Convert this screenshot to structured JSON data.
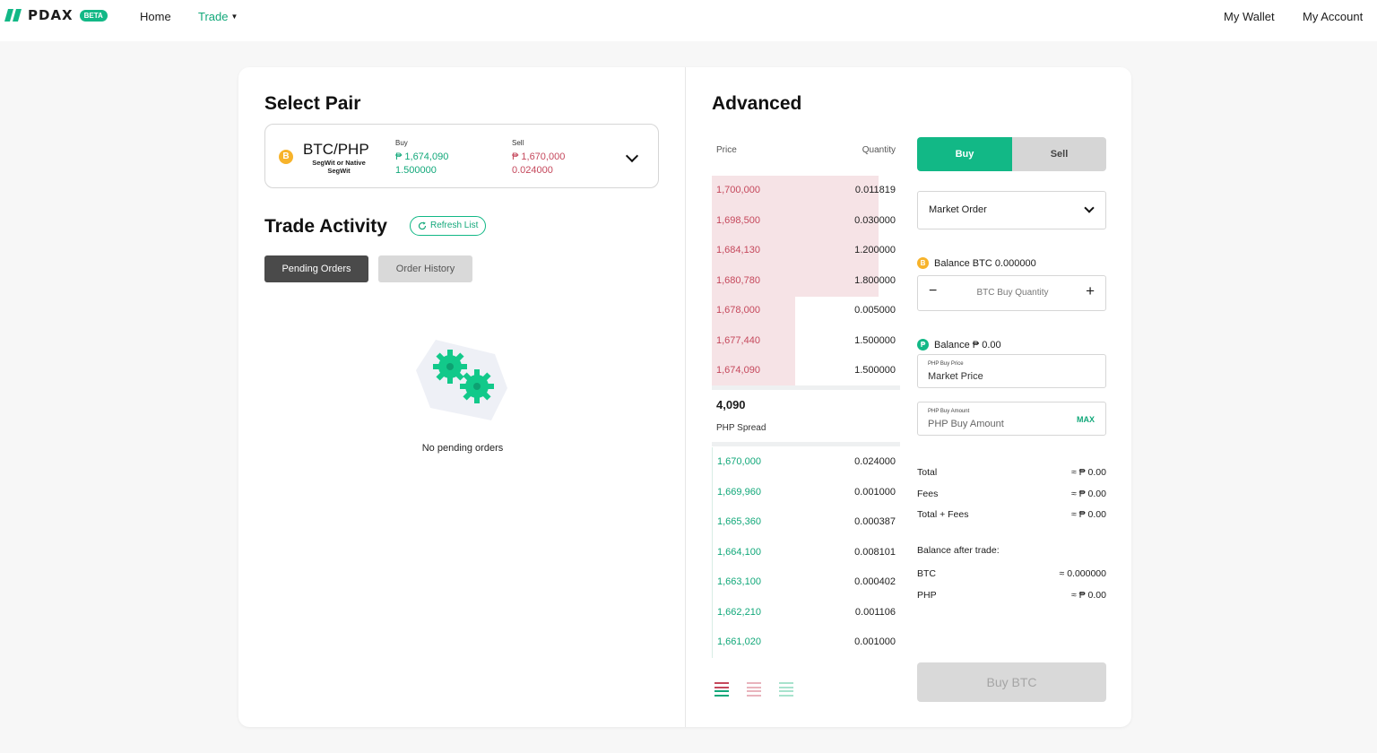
{
  "topbar": {
    "brand": "PDAX",
    "badge": "BETA",
    "nav": {
      "home": "Home",
      "trade": "Trade"
    },
    "right": {
      "wallet": "My Wallet",
      "account": "My Account"
    }
  },
  "select_pair": {
    "title": "Select Pair",
    "coin_glyph": "B",
    "pair": "BTC/PHP",
    "sub": "SegWit or Native SegWit",
    "buy": {
      "label": "Buy",
      "price": "₱ 1,674,090",
      "qty": "1.500000"
    },
    "sell": {
      "label": "Sell",
      "price": "₱ 1,670,000",
      "qty": "0.024000"
    }
  },
  "trade_activity": {
    "title": "Trade Activity",
    "refresh": "Refresh List",
    "tabs": {
      "pending": "Pending Orders",
      "history": "Order History"
    },
    "empty": "No pending orders"
  },
  "advanced": {
    "title": "Advanced",
    "headers": {
      "price": "Price",
      "quantity": "Quantity"
    },
    "asks": [
      {
        "price": "1,700,000",
        "qty": "0.011819",
        "depth": 0.94
      },
      {
        "price": "1,698,500",
        "qty": "0.030000",
        "depth": 0.94
      },
      {
        "price": "1,684,130",
        "qty": "1.200000",
        "depth": 0.94
      },
      {
        "price": "1,680,780",
        "qty": "1.800000",
        "depth": 0.94
      },
      {
        "price": "1,678,000",
        "qty": "0.005000",
        "depth": 0.47
      },
      {
        "price": "1,677,440",
        "qty": "1.500000",
        "depth": 0.47
      },
      {
        "price": "1,674,090",
        "qty": "1.500000",
        "depth": 0.47
      }
    ],
    "spread_value": "4,090",
    "spread_label": "PHP Spread",
    "bids": [
      {
        "price": "1,670,000",
        "qty": "0.024000"
      },
      {
        "price": "1,669,960",
        "qty": "0.001000"
      },
      {
        "price": "1,665,360",
        "qty": "0.000387"
      },
      {
        "price": "1,664,100",
        "qty": "0.008101"
      },
      {
        "price": "1,663,100",
        "qty": "0.000402"
      },
      {
        "price": "1,662,210",
        "qty": "0.001106"
      },
      {
        "price": "1,661,020",
        "qty": "0.001000"
      }
    ]
  },
  "order_form": {
    "buy": "Buy",
    "sell": "Sell",
    "order_type": "Market Order",
    "btc_balance": "Balance BTC 0.000000",
    "btc_qty_placeholder": "BTC Buy Quantity",
    "php_balance": "Balance ₱ 0.00",
    "buy_price_label": "PHP Buy Price",
    "buy_price_value": "Market Price",
    "buy_amount_label": "PHP Buy Amount",
    "buy_amount_placeholder": "PHP Buy Amount",
    "max": "MAX",
    "summary": [
      {
        "label": "Total",
        "value": "≈ ₱ 0.00"
      },
      {
        "label": "Fees",
        "value": "≈ ₱ 0.00"
      },
      {
        "label": "Total + Fees",
        "value": "≈ ₱ 0.00"
      }
    ],
    "after_title": "Balance after trade:",
    "after": [
      {
        "label": "BTC",
        "value": "≈ 0.000000"
      },
      {
        "label": "PHP",
        "value": "≈ ₱ 0.00"
      }
    ],
    "submit": "Buy BTC"
  },
  "colors": {
    "accent": "#12b886",
    "ask": "#c5485c",
    "bid": "#12a87a"
  }
}
